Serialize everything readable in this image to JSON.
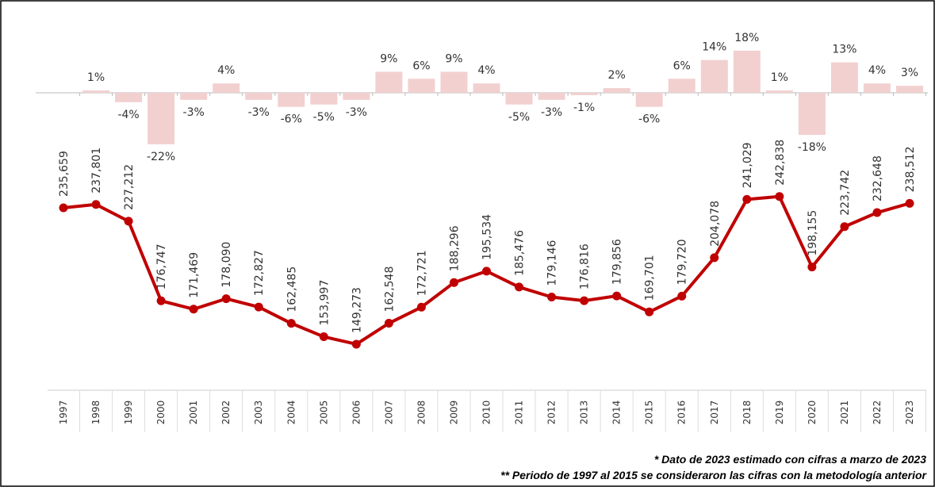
{
  "chart_data": {
    "type": "line",
    "categories": [
      "1997",
      "1998",
      "1999",
      "2000",
      "2001",
      "2002",
      "2003",
      "2004",
      "2005",
      "2006",
      "2007",
      "2008",
      "2009",
      "2010",
      "2011",
      "2012",
      "2013",
      "2014",
      "2015",
      "2016",
      "2017",
      "2018",
      "2019",
      "2020",
      "2021",
      "2022",
      "2023"
    ],
    "series": [
      {
        "type": "line",
        "color": "#c00000",
        "values": [
          235659,
          237801,
          227212,
          176747,
          171469,
          178090,
          172827,
          162485,
          153997,
          149273,
          162548,
          172721,
          188296,
          195534,
          185476,
          179146,
          176816,
          179856,
          169701,
          179720,
          204078,
          241029,
          242838,
          198155,
          223742,
          232648,
          238512
        ],
        "value_labels": [
          "235,659",
          "237,801",
          "227,212",
          "176,747",
          "171,469",
          "178,090",
          "172,827",
          "162,485",
          "153,997",
          "149,273",
          "162,548",
          "172,721",
          "188,296",
          "195,534",
          "185,476",
          "179,146",
          "176,816",
          "179,856",
          "169,701",
          "179,720",
          "204,078",
          "241,029",
          "242,838",
          "198,155",
          "223,742",
          "232,648",
          "238,512"
        ]
      },
      {
        "type": "bar",
        "axis": "y2",
        "color": "#f2d0d0",
        "values": [
          null,
          1,
          -4,
          -22,
          -3,
          4,
          -3,
          -6,
          -5,
          -3,
          9,
          6,
          9,
          4,
          -5,
          -3,
          -1,
          2,
          -6,
          6,
          14,
          18,
          1,
          -18,
          13,
          4,
          3
        ],
        "value_labels": [
          null,
          "1%",
          "-4%",
          "-22%",
          "-3%",
          "4%",
          "-3%",
          "-6%",
          "-5%",
          "-3%",
          "9%",
          "6%",
          "9%",
          "4%",
          "-5%",
          "-3%",
          "-1%",
          "2%",
          "-6%",
          "6%",
          "14%",
          "18%",
          "1%",
          "-18%",
          "13%",
          "4%",
          "3%"
        ]
      }
    ],
    "ylim": [
      100000,
      300000
    ],
    "y2lim": [
      -30,
      30
    ],
    "annotations": [
      "*  Dato de 2023 estimado con cifras a marzo de 2023",
      "** Periodo de 1997 al 2015 se consideraron las cifras con la metodología anterior"
    ]
  }
}
